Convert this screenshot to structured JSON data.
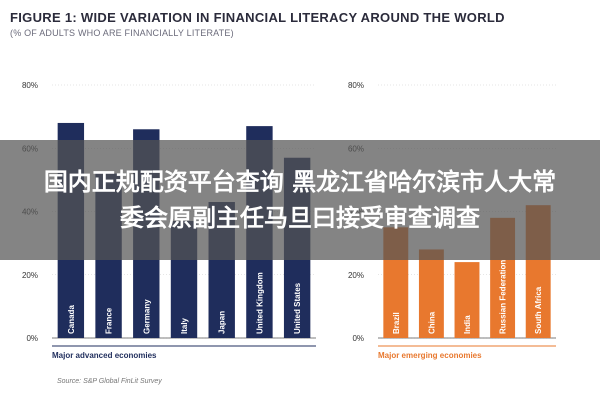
{
  "figure": {
    "title": "FIGURE 1: WIDE VARIATION IN FINANCIAL LITERACY AROUND THE WORLD",
    "subtitle": "(% OF ADULTS WHO ARE FINANCIALLY LITERATE)",
    "source": "Source: S&P Global FinLit Survey"
  },
  "overlay": {
    "line1": "国内正规配资平台查询 黑龙江省哈尔滨市人大常",
    "line2": "委会原副主任马旦曰接受审查调查"
  },
  "colors": {
    "advanced": "#1f2d5c",
    "emerging": "#e8782e",
    "axis_text": "#333333",
    "gridline": "#cccccc"
  },
  "chart_data": [
    {
      "type": "bar",
      "group_label": "Major advanced economies",
      "categories": [
        "Canada",
        "France",
        "Germany",
        "Italy",
        "Japan",
        "United Kingdom",
        "United States"
      ],
      "values": [
        68,
        52,
        66,
        37,
        43,
        67,
        57
      ],
      "yticks": [
        "0%",
        "20%",
        "40%",
        "60%",
        "80%"
      ],
      "ylim": [
        0,
        80
      ],
      "color": "#1f2d5c"
    },
    {
      "type": "bar",
      "group_label": "Major emerging economies",
      "categories": [
        "Brazil",
        "China",
        "India",
        "Russian Federation",
        "South Africa"
      ],
      "values": [
        35,
        28,
        24,
        38,
        42
      ],
      "yticks": [
        "0%",
        "20%",
        "40%",
        "60%",
        "80%"
      ],
      "ylim": [
        0,
        80
      ],
      "color": "#e8782e"
    }
  ]
}
